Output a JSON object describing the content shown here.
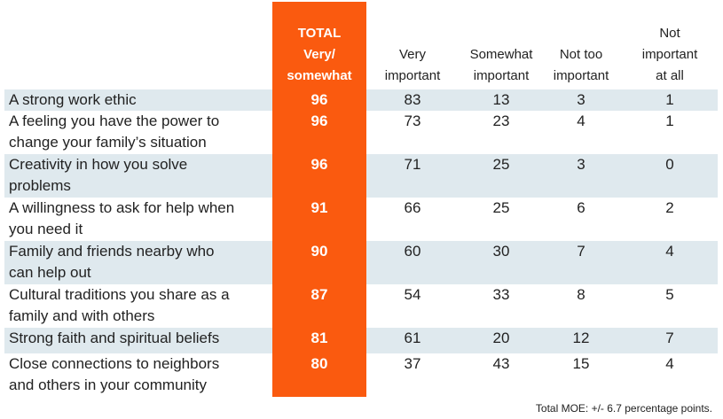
{
  "chart_data": {
    "type": "table",
    "columns": [
      {
        "key": "total",
        "lines": [
          "TOTAL",
          "Very/",
          "somewhat"
        ]
      },
      {
        "key": "very",
        "lines": [
          "Very",
          "important"
        ]
      },
      {
        "key": "somewhat",
        "lines": [
          "Somewhat",
          "important"
        ]
      },
      {
        "key": "not_too",
        "lines": [
          "Not too",
          "important"
        ]
      },
      {
        "key": "not_at_all",
        "lines": [
          "Not",
          "important",
          "at all"
        ]
      }
    ],
    "rows": [
      {
        "label_lines": [
          "A strong work ethic"
        ],
        "values": [
          96,
          83,
          13,
          3,
          1
        ]
      },
      {
        "label_lines": [
          "A feeling you have the power to",
          "change your family’s situation"
        ],
        "values": [
          96,
          73,
          23,
          4,
          1
        ]
      },
      {
        "label_lines": [
          "Creativity in how you solve",
          "problems"
        ],
        "values": [
          96,
          71,
          25,
          3,
          0
        ]
      },
      {
        "label_lines": [
          "A willingness to ask for help when",
          "you need it"
        ],
        "values": [
          91,
          66,
          25,
          6,
          2
        ]
      },
      {
        "label_lines": [
          "Family and friends nearby who",
          "can help out"
        ],
        "values": [
          90,
          60,
          30,
          7,
          4
        ]
      },
      {
        "label_lines": [
          "Cultural traditions you share as a",
          "family and with others"
        ],
        "values": [
          87,
          54,
          33,
          8,
          5
        ]
      },
      {
        "label_lines": [
          "Strong faith and spiritual beliefs"
        ],
        "values": [
          81,
          61,
          20,
          12,
          7
        ]
      },
      {
        "label_lines": [
          "Close connections to neighbors",
          "and others in your community"
        ],
        "values": [
          80,
          37,
          43,
          15,
          4
        ]
      }
    ],
    "footnote": "Total MOE: +/- 6.7 percentage points.",
    "colors": {
      "highlight": "#fa5a0f",
      "row_shade": "#dfe9ee",
      "text": "#222222",
      "highlight_text": "#ffffff"
    }
  }
}
